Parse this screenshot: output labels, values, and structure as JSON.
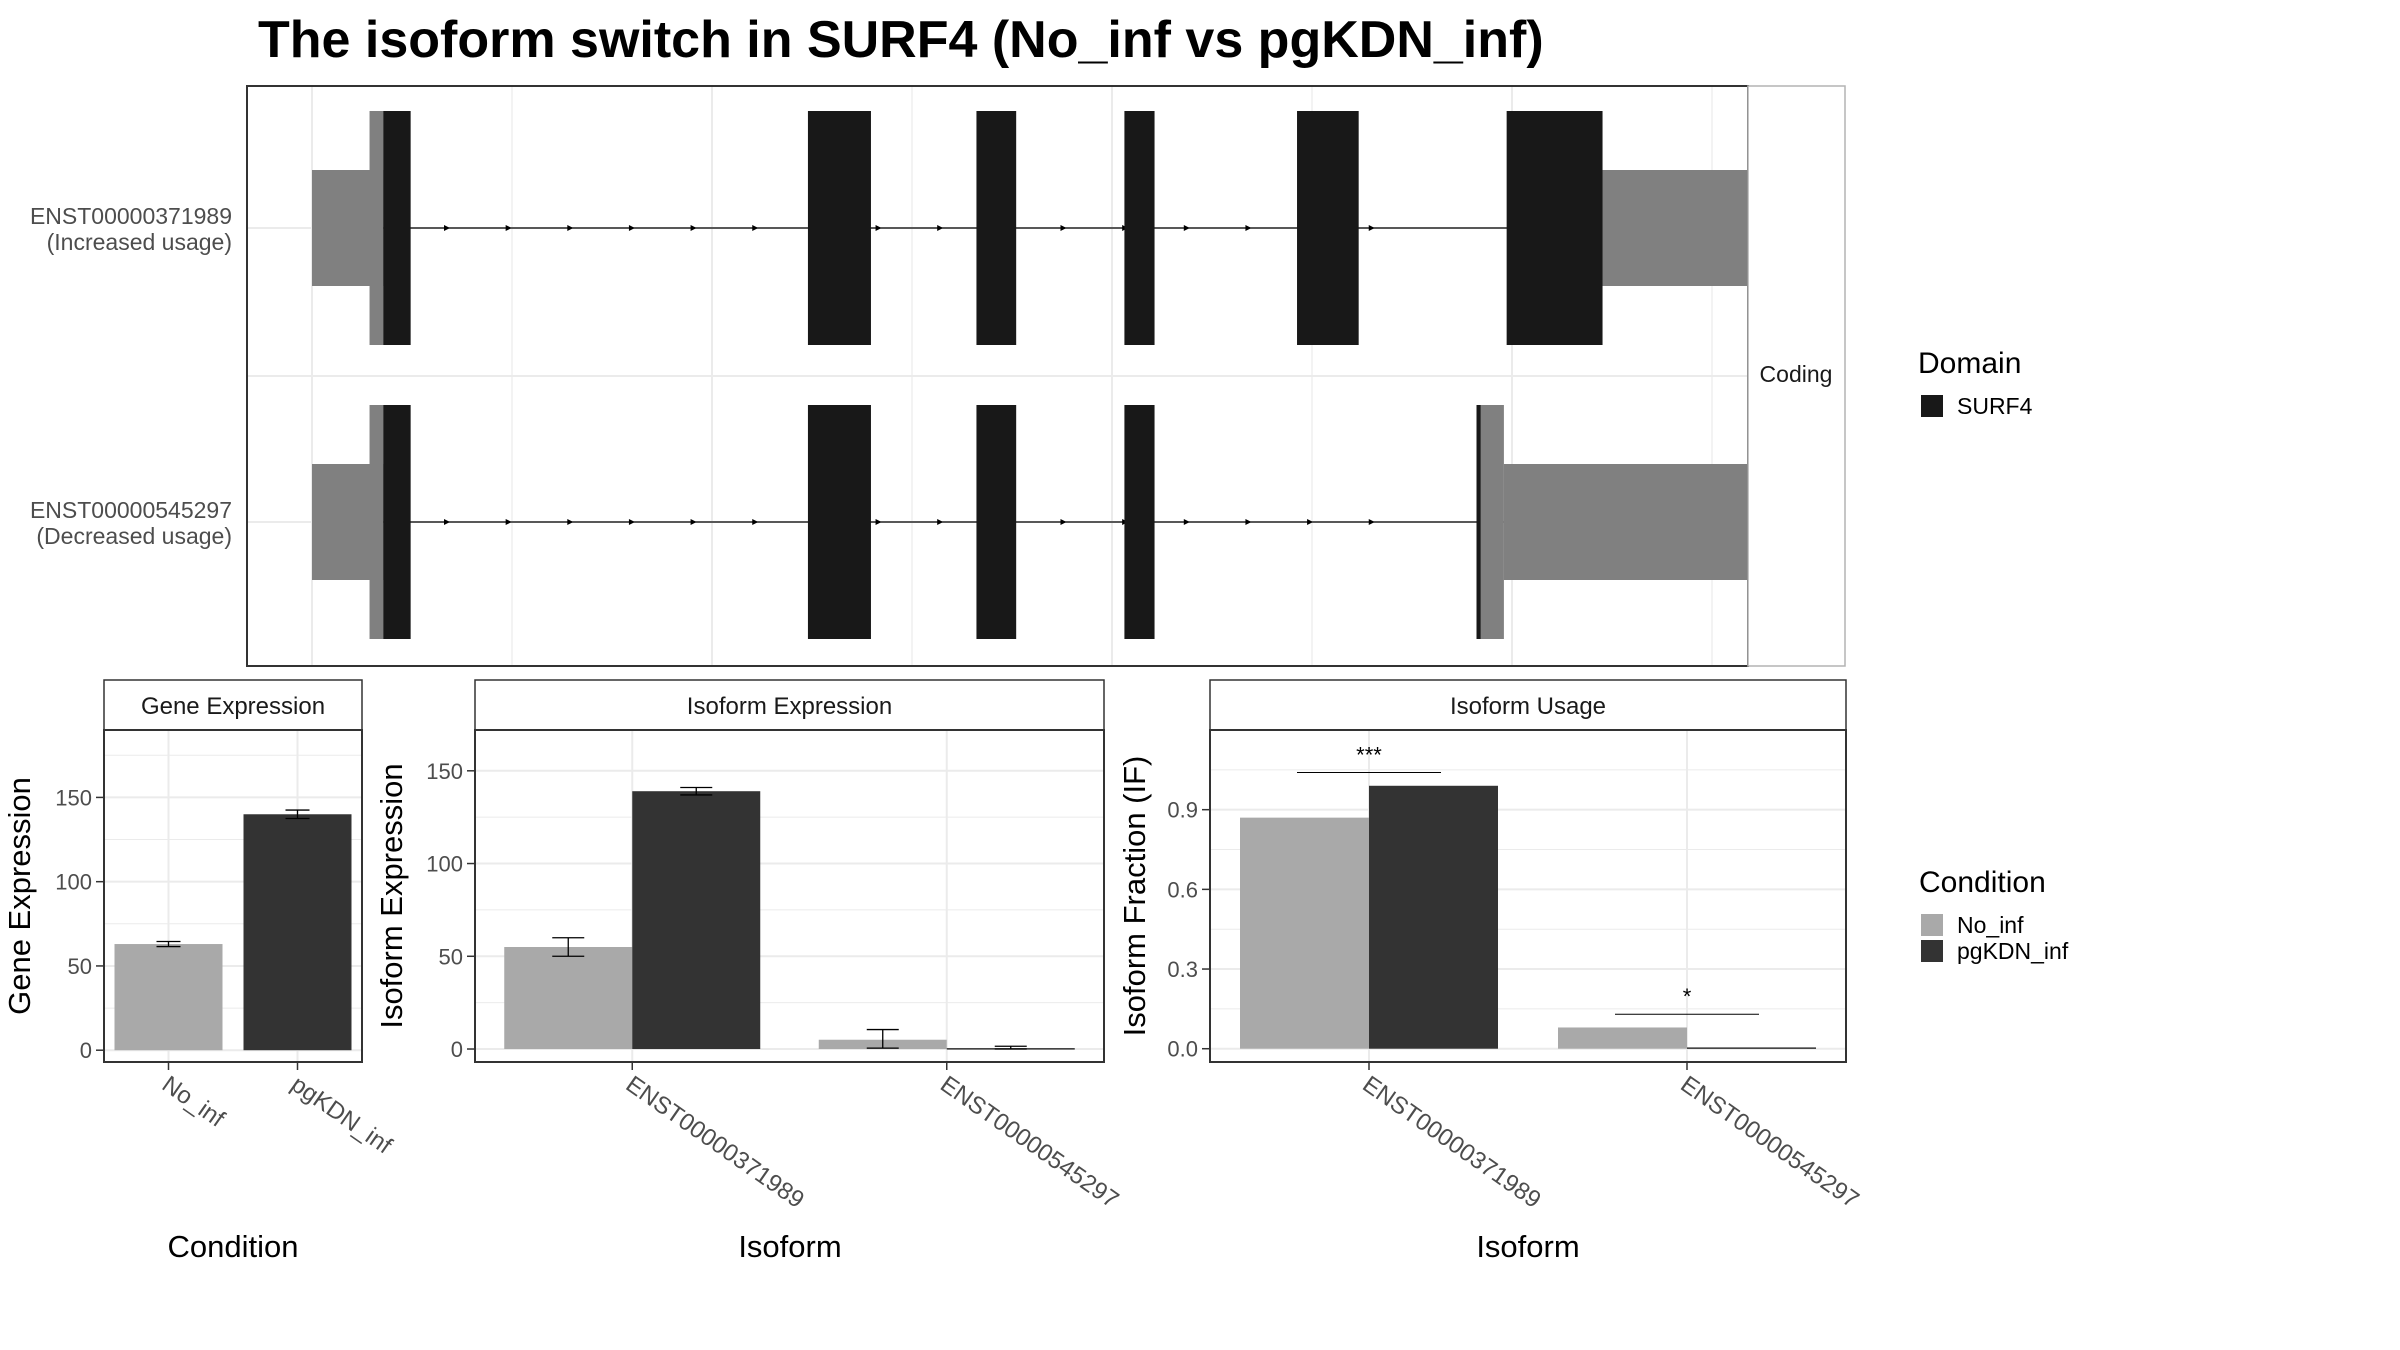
{
  "title": "The isoform switch in SURF4 (No_inf vs pgKDN_inf)",
  "colors": {
    "no_inf": "#a9a9a9",
    "pgkdn_inf": "#333333",
    "domain": "#181818",
    "utr": "#808080",
    "grid": "#ebebeb",
    "frame": "#333333",
    "strip_border": "#b3b3b3",
    "text_dark": "#000000",
    "text_axis": "#4d4d4d"
  },
  "chart_data": [
    {
      "type": "transcript-structure",
      "title": "The isoform switch in SURF4 (No_inf vs pgKDN_inf)",
      "facet_strip": "Coding",
      "xlim": [
        0,
        1000
      ],
      "transcripts": [
        {
          "id": "ENST00000371989",
          "note": "(Increased usage)",
          "utr": [
            [
              0,
              52
            ],
            [
              915,
              1065
            ]
          ],
          "cds": [
            [
              42,
              52
            ],
            [
              897,
              915
            ]
          ],
          "domain": [
            [
              52,
              72
            ],
            [
              362,
              408
            ],
            [
              485,
              514
            ],
            [
              593,
              615
            ],
            [
              719,
              764
            ],
            [
              872,
              942
            ]
          ]
        },
        {
          "id": "ENST00000545297",
          "note": "(Decreased usage)",
          "utr": [
            [
              0,
              52
            ],
            [
              870,
              1078
            ]
          ],
          "cds": [
            [
              42,
              52
            ],
            [
              850,
              870
            ]
          ],
          "domain": [
            [
              52,
              72
            ],
            [
              362,
              408
            ],
            [
              485,
              514
            ],
            [
              593,
              615
            ],
            [
              850,
              853
            ]
          ]
        }
      ],
      "legend": {
        "title": "Domain",
        "entries": [
          "SURF4"
        ]
      }
    },
    {
      "type": "bar",
      "strip": "Gene Expression",
      "xlabel": "Condition",
      "ylabel": "Gene Expression",
      "ylim": [
        -7,
        190
      ],
      "yticks": [
        0,
        50,
        100,
        150
      ],
      "categories": [
        "No_inf",
        "pgKDN_inf"
      ],
      "values": [
        63,
        140
      ],
      "errors": [
        [
          61.5,
          64.5
        ],
        [
          137.5,
          142.5
        ]
      ]
    },
    {
      "type": "bar",
      "strip": "Isoform Expression",
      "xlabel": "Isoform",
      "ylabel": "Isoform Expression",
      "ylim": [
        -7,
        172
      ],
      "yticks": [
        0,
        50,
        100,
        150
      ],
      "categories": [
        "ENST00000371989",
        "ENST00000545297"
      ],
      "series": [
        {
          "name": "No_inf",
          "values": [
            55,
            5
          ],
          "errors": [
            [
              50,
              60
            ],
            [
              0.5,
              10.5
            ]
          ]
        },
        {
          "name": "pgKDN_inf",
          "values": [
            139,
            0.5
          ],
          "errors": [
            [
              137,
              141
            ],
            [
              0,
              1.5
            ]
          ]
        }
      ]
    },
    {
      "type": "bar",
      "strip": "Isoform Usage",
      "xlabel": "Isoform",
      "ylabel": "Isoform Fraction (IF)",
      "ylim": [
        -0.05,
        1.2
      ],
      "yticks": [
        0.0,
        0.3,
        0.6,
        0.9
      ],
      "ytick_labels": [
        "0.0",
        "0.3",
        "0.6",
        "0.9"
      ],
      "categories": [
        "ENST00000371989",
        "ENST00000545297"
      ],
      "series": [
        {
          "name": "No_inf",
          "values": [
            0.87,
            0.08
          ]
        },
        {
          "name": "pgKDN_inf",
          "values": [
            0.99,
            0.005
          ]
        }
      ],
      "significance": [
        {
          "category": "ENST00000371989",
          "label": "***",
          "y": 1.04
        },
        {
          "category": "ENST00000545297",
          "label": "*",
          "y": 0.13
        }
      ],
      "legend": {
        "title": "Condition",
        "entries": [
          "No_inf",
          "pgKDN_inf"
        ]
      }
    }
  ]
}
